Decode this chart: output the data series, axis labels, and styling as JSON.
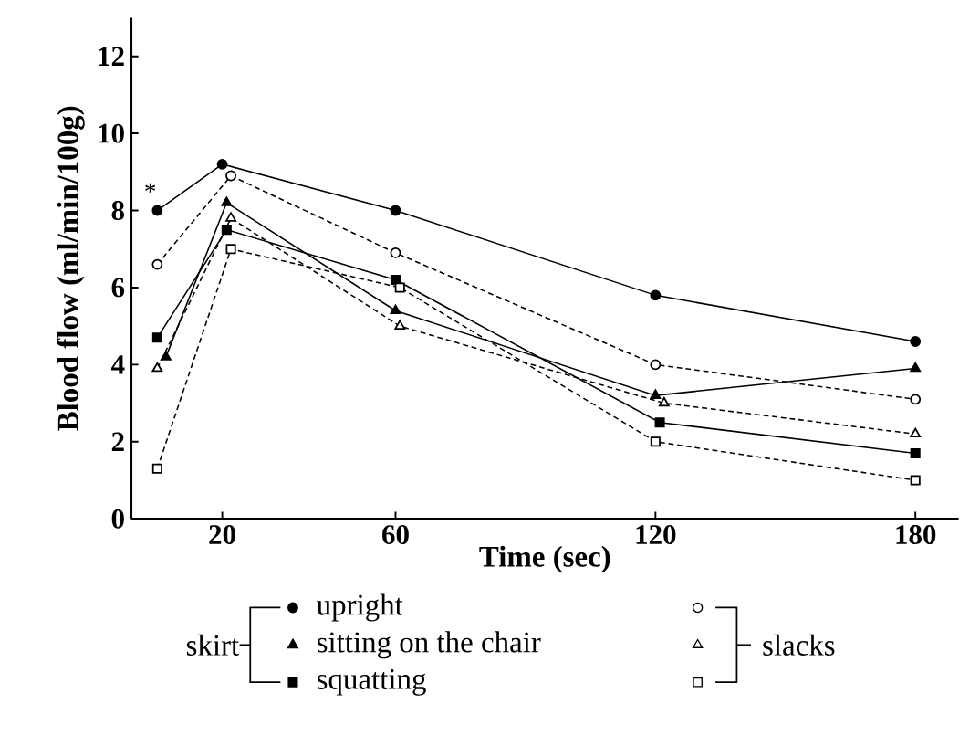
{
  "chart_data": {
    "type": "line",
    "xlabel": "Time (sec)",
    "ylabel": "Blood flow (ml/min/100g)",
    "xlim": [
      -1,
      190
    ],
    "ylim": [
      0,
      13
    ],
    "xticks": [
      20,
      60,
      120,
      180
    ],
    "yticks": [
      0,
      2,
      4,
      6,
      8,
      10,
      12
    ],
    "grid": false,
    "legend": "bottom",
    "series": [
      {
        "name": "upright",
        "color": "#000000",
        "marker": "circle",
        "line_style": "solid",
        "x": [
          5,
          20,
          60,
          120,
          180
        ],
        "values": [
          8.0,
          9.2,
          8.0,
          5.8,
          4.6
        ]
      },
      {
        "name": "sitting on the chair",
        "color": "#000000",
        "marker": "triangle",
        "line_style": "solid",
        "x": [
          7,
          21,
          60,
          120,
          180
        ],
        "values": [
          4.2,
          8.2,
          5.4,
          3.2,
          3.9
        ]
      },
      {
        "name": "squatting",
        "color": "#000000",
        "marker": "square",
        "line_style": "solid",
        "x": [
          5,
          21,
          60,
          121,
          180
        ],
        "values": [
          4.7,
          7.5,
          6.2,
          2.5,
          1.7
        ]
      },
      {
        "color": "#000000",
        "marker": "circle",
        "line_style": "dashed",
        "x": [
          5,
          22,
          60,
          120,
          180
        ],
        "values": [
          6.6,
          8.9,
          6.9,
          4.0,
          3.1
        ]
      },
      {
        "color": "#000000",
        "marker": "triangle",
        "line_style": "dashed",
        "x": [
          5,
          22,
          61,
          122,
          180
        ],
        "values": [
          3.9,
          7.8,
          5.0,
          3.0,
          2.2
        ]
      },
      {
        "color": "#000000",
        "marker": "square",
        "line_style": "dashed",
        "x": [
          5,
          22,
          61,
          120,
          180
        ],
        "values": [
          1.3,
          7.0,
          6.0,
          2.0,
          1.0
        ]
      }
    ],
    "annotations": [
      {
        "text": "*",
        "x": 5,
        "y": 8.0
      },
      "skirt",
      "slacks"
    ]
  }
}
